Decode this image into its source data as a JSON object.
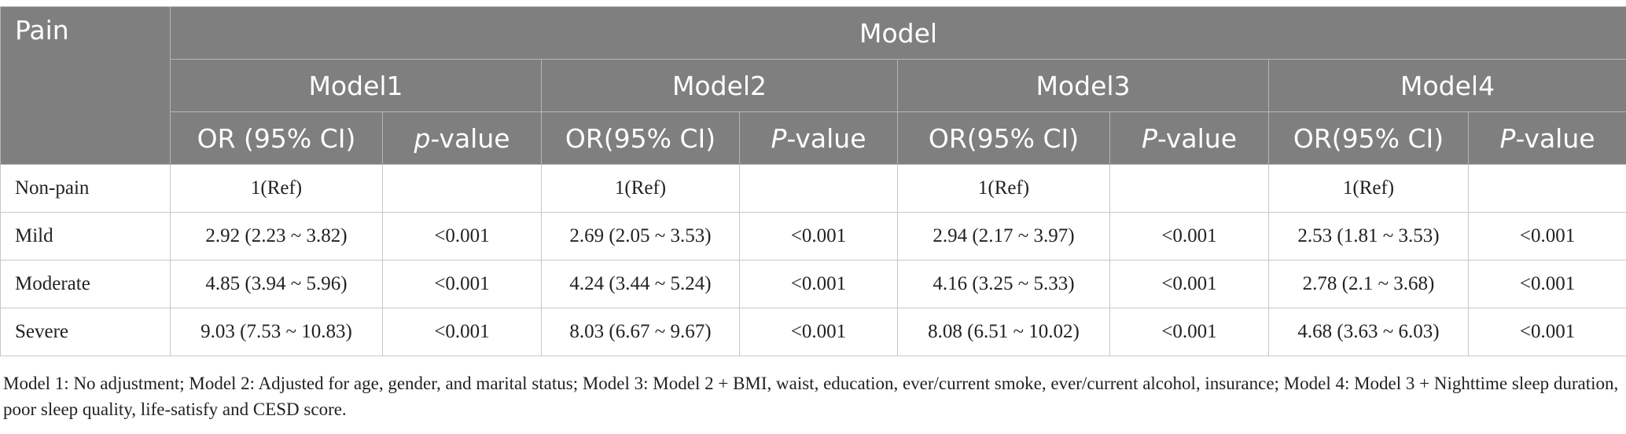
{
  "header": {
    "pain_label": "Pain",
    "model_group": "Model",
    "models": [
      "Model1",
      "Model2",
      "Model3",
      "Model4"
    ],
    "subheaders": [
      {
        "or": "OR (95% CI)",
        "p_prefix": "p",
        "p_suffix": "-value"
      },
      {
        "or": "OR(95% CI)",
        "p_prefix": "P",
        "p_suffix": "-value"
      },
      {
        "or": "OR(95% CI)",
        "p_prefix": "P",
        "p_suffix": "-value"
      },
      {
        "or": "OR(95% CI)",
        "p_prefix": "P",
        "p_suffix": "-value"
      }
    ]
  },
  "rows": [
    {
      "label": "Non-pain",
      "cells": [
        "1(Ref)",
        "",
        "1(Ref)",
        "",
        "1(Ref)",
        "",
        "1(Ref)",
        ""
      ]
    },
    {
      "label": "Mild",
      "cells": [
        "2.92 (2.23 ~ 3.82)",
        "<0.001",
        "2.69 (2.05 ~ 3.53)",
        "<0.001",
        "2.94 (2.17 ~ 3.97)",
        "<0.001",
        "2.53 (1.81 ~ 3.53)",
        "<0.001"
      ]
    },
    {
      "label": "Moderate",
      "cells": [
        "4.85 (3.94 ~ 5.96)",
        "<0.001",
        "4.24 (3.44 ~ 5.24)",
        "<0.001",
        "4.16 (3.25 ~ 5.33)",
        "<0.001",
        "2.78 (2.1 ~ 3.68)",
        "<0.001"
      ]
    },
    {
      "label": "Severe",
      "cells": [
        "9.03 (7.53 ~ 10.83)",
        "<0.001",
        "8.03 (6.67 ~ 9.67)",
        "<0.001",
        "8.08 (6.51 ~ 10.02)",
        "<0.001",
        "4.68 (3.63 ~ 6.03)",
        "<0.001"
      ]
    }
  ],
  "footnote": "Model 1: No adjustment; Model 2: Adjusted for age, gender, and marital status; Model 3: Model 2 + BMI, waist, education, ever/current smoke, ever/current alcohol, insurance; Model 4: Model 3 + Nighttime sleep duration, poor sleep quality, life-satisfy and CESD score."
}
